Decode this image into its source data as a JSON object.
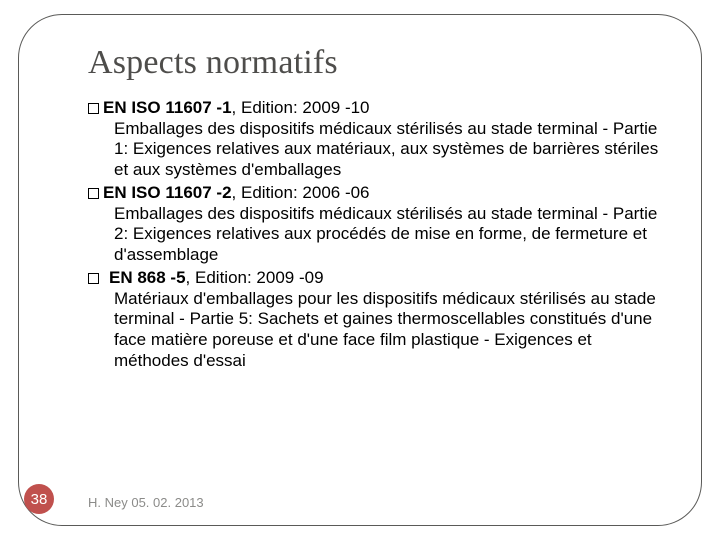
{
  "slide": {
    "title": "Aspects normatifs",
    "title_color": "#4e4d4b",
    "title_fontsize": 34,
    "body_fontsize": 17,
    "body_color": "#000000",
    "frame_border_color": "#5a5a58",
    "frame_border_radius": 44,
    "background_color": "#ffffff",
    "items": [
      {
        "standard": "EN ISO 11607 -1",
        "edition": ", Edition: 2009 -10",
        "indent_bullet": false,
        "description": "Emballages des dispositifs médicaux stérilisés au stade terminal - Partie 1: Exigences relatives aux matériaux, aux systèmes de barrières stériles et aux systèmes d'emballages"
      },
      {
        "standard": "EN ISO 11607 -2",
        "edition": ", Edition: 2006 -06",
        "indent_bullet": false,
        "description": "Emballages des dispositifs médicaux stérilisés au stade terminal - Partie 2: Exigences relatives aux procédés de mise en forme, de fermeture et d'assemblage"
      },
      {
        "standard": "EN 868 -5",
        "edition": ", Edition: 2009 -09",
        "indent_bullet": true,
        "description": "Matériaux d'emballages pour les dispositifs médicaux stérilisés au stade terminal - Partie 5: Sachets et gaines thermoscellables constitués d'une face matière poreuse et d'une face film plastique - Exigences et méthodes d'essai"
      }
    ]
  },
  "footer": {
    "page_number": "38",
    "badge_color": "#c0504d",
    "badge_text_color": "#ffffff",
    "author_date": "H. Ney 05. 02. 2013",
    "footer_color": "#8b8b89"
  }
}
